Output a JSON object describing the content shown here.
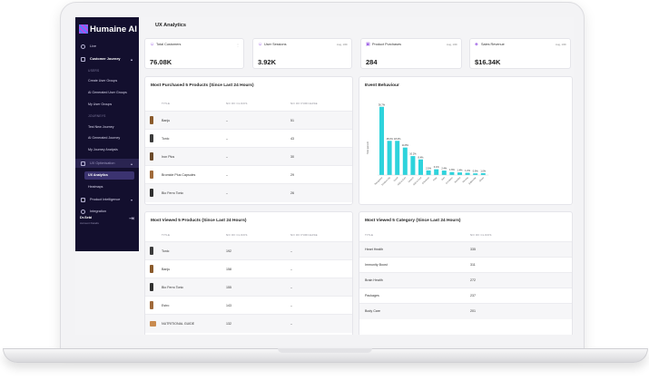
{
  "brand": {
    "name": "Humaine AI"
  },
  "sidebar": {
    "items": [
      {
        "label": "Live"
      },
      {
        "label": "Customer Journey"
      }
    ],
    "users_head": "USERS",
    "user_items": [
      "Create User Groups",
      "AI Generated User Groups",
      "My User Groups"
    ],
    "journeys_head": "JOURNEYS",
    "journey_items": [
      "Test New Journey",
      "AI Generated Journey",
      "My Journey Analysis"
    ],
    "ux_group": "UX Optimisation",
    "ux_items": [
      "UX Analytics",
      "Heatmaps"
    ],
    "product_intel": "Product Intelligence",
    "integration": "Integration",
    "user_name": "Dr.Sebi",
    "user_sub": "Account Details"
  },
  "page_title": "UX Analytics",
  "kpis": [
    {
      "label": "Total Customers",
      "date": "",
      "value": "76.08K",
      "icon": "user-icon"
    },
    {
      "label": "User Sessions",
      "date": "Aug, 10th",
      "value": "3.92K",
      "icon": "user-session-icon"
    },
    {
      "label": "Product Purchases",
      "date": "Aug, 10th",
      "value": "284",
      "icon": "cart-icon"
    },
    {
      "label": "Sales Revenue",
      "date": "Aug, 10th",
      "value": "$16.34K",
      "icon": "revenue-icon"
    }
  ],
  "purchased": {
    "title": "Most Purchased 5 Products (Since Last 24 Hours)",
    "headers": [
      "TITLE",
      "NO OF CLICKS",
      "NO OF PURCHASE"
    ],
    "rows": [
      {
        "title": "Banju",
        "clicks": "–",
        "purchase": "51",
        "color": "#8a5a2b"
      },
      {
        "title": "Tonic",
        "clicks": "–",
        "purchase": "43",
        "color": "#3b3b3b"
      },
      {
        "title": "Iron Plus",
        "clicks": "–",
        "purchase": "30",
        "color": "#6b4a2a"
      },
      {
        "title": "Bromide Plus Capsules",
        "clicks": "–",
        "purchase": "29",
        "color": "#a06a3a"
      },
      {
        "title": "Bio Ferro Tonic",
        "clicks": "–",
        "purchase": "26",
        "color": "#2f2f2f"
      }
    ]
  },
  "event_behaviour": {
    "title": "Event Behaviour"
  },
  "chart_data": {
    "type": "bar",
    "title": "Event Behaviour",
    "ylabel": "Total percent",
    "categories": [
      "Navigation",
      "Product Clk",
      "Scroll",
      "Add to Cart",
      "Search",
      "Add to Cart",
      "Checkout",
      "Filter",
      "Sort",
      "Compare",
      "Wishlist",
      "Review",
      "Subscribe",
      "Share"
    ],
    "values": [
      36.7,
      18.4,
      18.4,
      14.8,
      10.2,
      8.4,
      2.5,
      3.1,
      2.4,
      1.6,
      1.4,
      1.2,
      0.9,
      1.0
    ],
    "value_labels": [
      "36.7%",
      "18.4%",
      "18.4%",
      "14.8%",
      "10.2%",
      "8.4%",
      "2.5%",
      "3.1%",
      "2.4%",
      "1.6%",
      "1.4%",
      "1.2%",
      "0.9%",
      "1.0%"
    ],
    "ylim": [
      0,
      40
    ],
    "grid": false,
    "color": "#2ed3dc"
  },
  "viewed_products": {
    "title": "Most Viewed 5 Products (Since Last 24 Hours)",
    "headers": [
      "TITLE",
      "NO OF CLICKS",
      "NO OF PURCHASE"
    ],
    "rows": [
      {
        "title": "Tonic",
        "clicks": "192",
        "purchase": "–",
        "color": "#3b3b3b"
      },
      {
        "title": "Banju",
        "clicks": "158",
        "purchase": "–",
        "color": "#8a5a2b"
      },
      {
        "title": "Bio Ferro Tonic",
        "clicks": "155",
        "purchase": "–",
        "color": "#2f2f2f"
      },
      {
        "title": "Estro",
        "clicks": "143",
        "purchase": "–",
        "color": "#a06a3a"
      },
      {
        "title": "NUTRITIONAL GUIDE",
        "clicks": "132",
        "purchase": "–",
        "color": "#c98b4f"
      }
    ]
  },
  "viewed_categories": {
    "title": "Most Viewed 5 Category (Since Last 24 Hours)",
    "headers": [
      "TITLE",
      "NO OF CLICKS"
    ],
    "rows": [
      {
        "title": "Heart Health",
        "clicks": "335"
      },
      {
        "title": "Immunity Boost",
        "clicks": "311"
      },
      {
        "title": "Brain Health",
        "clicks": "272"
      },
      {
        "title": "Packages",
        "clicks": "237"
      },
      {
        "title": "Body Care",
        "clicks": "201"
      }
    ]
  }
}
